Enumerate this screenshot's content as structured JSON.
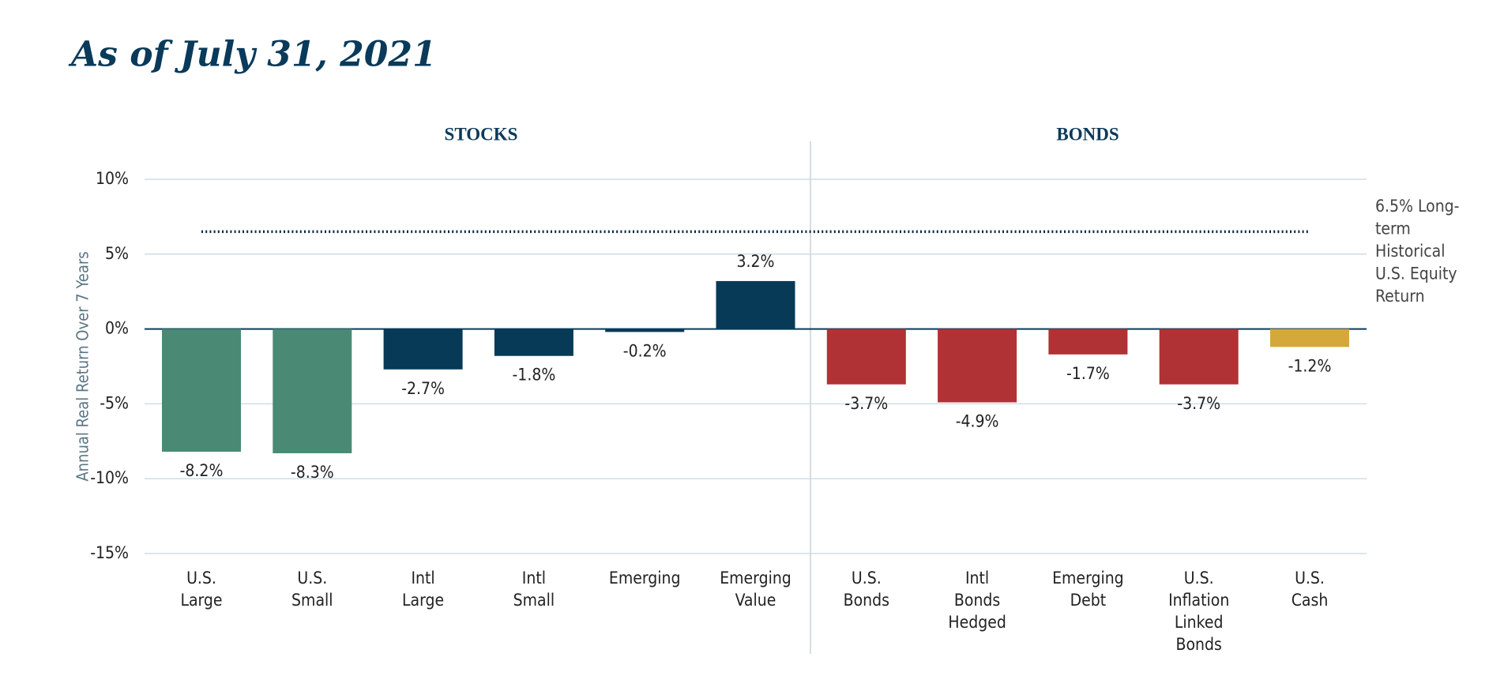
{
  "chart_data": {
    "type": "bar",
    "title": "As of July 31, 2021",
    "y_axis_label": "Annual Real Return Over 7 Years",
    "sections": [
      "STOCKS",
      "BONDS"
    ],
    "categories": [
      [
        "U.S.",
        "Large"
      ],
      [
        "U.S.",
        "Small"
      ],
      [
        "Intl",
        "Large"
      ],
      [
        "Intl",
        "Small"
      ],
      [
        "Emerging"
      ],
      [
        "Emerging",
        "Value"
      ],
      [
        "U.S.",
        "Bonds"
      ],
      [
        "Intl",
        "Bonds",
        "Hedged"
      ],
      [
        "Emerging",
        "Debt"
      ],
      [
        "U.S.",
        "Inflation",
        "Linked",
        "Bonds"
      ],
      [
        "U.S.",
        "Cash"
      ]
    ],
    "values": [
      -8.2,
      -8.3,
      -2.7,
      -1.8,
      -0.2,
      3.2,
      -3.7,
      -4.9,
      -1.7,
      -3.7,
      -1.2
    ],
    "value_labels": [
      "-8.2%",
      "-8.3%",
      "-2.7%",
      "-1.8%",
      "-0.2%",
      "3.2%",
      "-3.7%",
      "-4.9%",
      "-1.7%",
      "-3.7%",
      "-1.2%"
    ],
    "colors": [
      "#4a8a74",
      "#4a8a74",
      "#063a57",
      "#063a57",
      "#063a57",
      "#063a57",
      "#b03234",
      "#b03234",
      "#b03234",
      "#b03234",
      "#d4a83a"
    ],
    "ylim": [
      -15,
      10
    ],
    "yticks": [
      {
        "value": -15,
        "label": "-15%"
      },
      {
        "value": -10,
        "label": "-10%"
      },
      {
        "value": -5,
        "label": "-5%"
      },
      {
        "value": 0,
        "label": "0%"
      },
      {
        "value": 5,
        "label": "5%"
      },
      {
        "value": 10,
        "label": "10%"
      }
    ],
    "grid": true,
    "reference_line": {
      "value": 6.5,
      "label": [
        "6.5% Long-",
        "term",
        "Historical",
        "U.S. Equity",
        "Return"
      ]
    }
  }
}
